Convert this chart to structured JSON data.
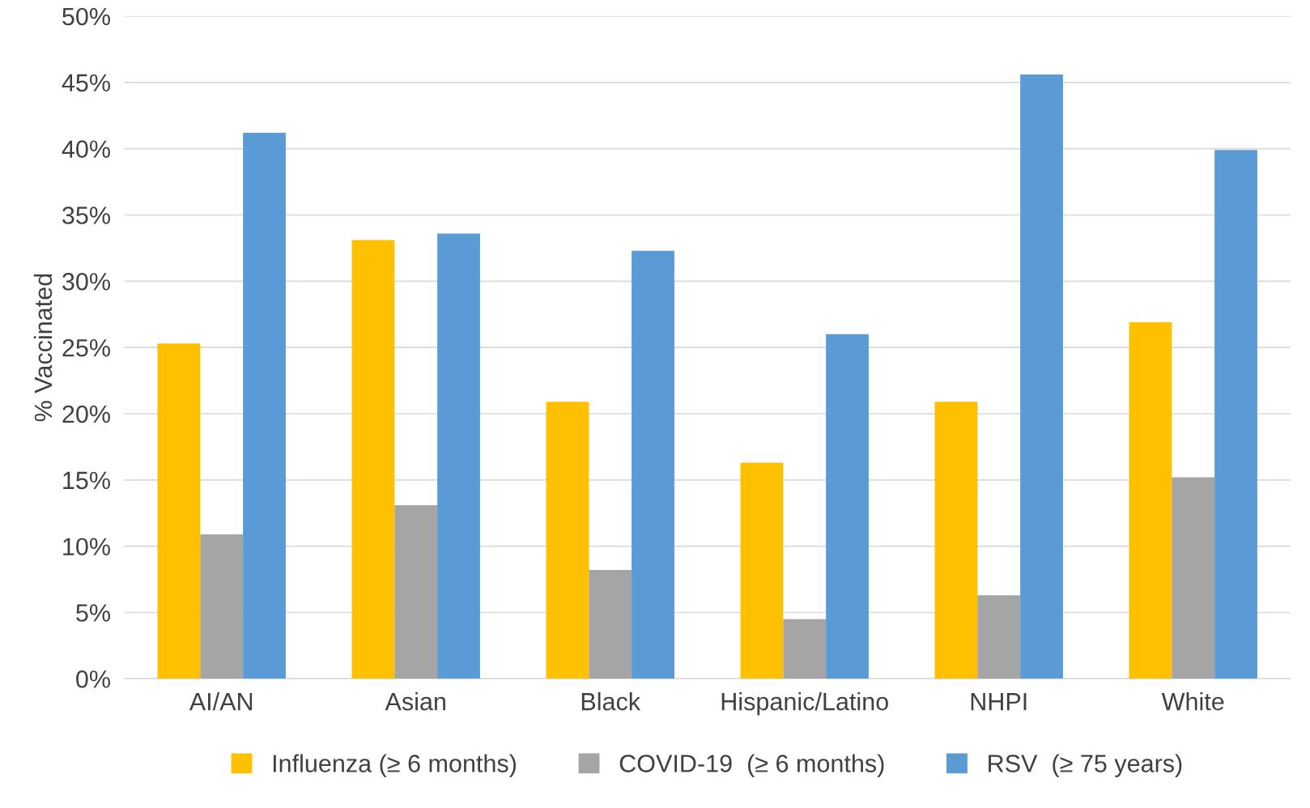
{
  "chart_data": {
    "type": "bar",
    "ylabel": "% Vaccinated",
    "categories": [
      "AI/AN",
      "Asian",
      "Black",
      "Hispanic/Latino",
      "NHPI",
      "White"
    ],
    "series": [
      {
        "name": "Influenza (≥ 6 months)",
        "color": "#ffc000",
        "values": [
          25.3,
          33.1,
          20.9,
          16.3,
          20.9,
          26.9
        ]
      },
      {
        "name": "COVID-19  (≥ 6 months)",
        "color": "#a5a5a5",
        "values": [
          10.9,
          13.1,
          8.2,
          4.5,
          6.3,
          15.2
        ]
      },
      {
        "name": "RSV  (≥ 75 years)",
        "color": "#5b9bd5",
        "values": [
          41.2,
          33.6,
          32.3,
          26.0,
          45.6,
          39.9
        ]
      }
    ],
    "ylim": [
      0,
      50
    ],
    "yticks": [
      {
        "value": 0,
        "label": "0%"
      },
      {
        "value": 5,
        "label": "5%"
      },
      {
        "value": 10,
        "label": "10%"
      },
      {
        "value": 15,
        "label": "15%"
      },
      {
        "value": 20,
        "label": "20%"
      },
      {
        "value": 25,
        "label": "25%"
      },
      {
        "value": 30,
        "label": "30%"
      },
      {
        "value": 35,
        "label": "35%"
      },
      {
        "value": 40,
        "label": "40%"
      },
      {
        "value": 45,
        "label": "45%"
      },
      {
        "value": 50,
        "label": "50%"
      }
    ],
    "grid": "y",
    "legend": "bottom"
  }
}
